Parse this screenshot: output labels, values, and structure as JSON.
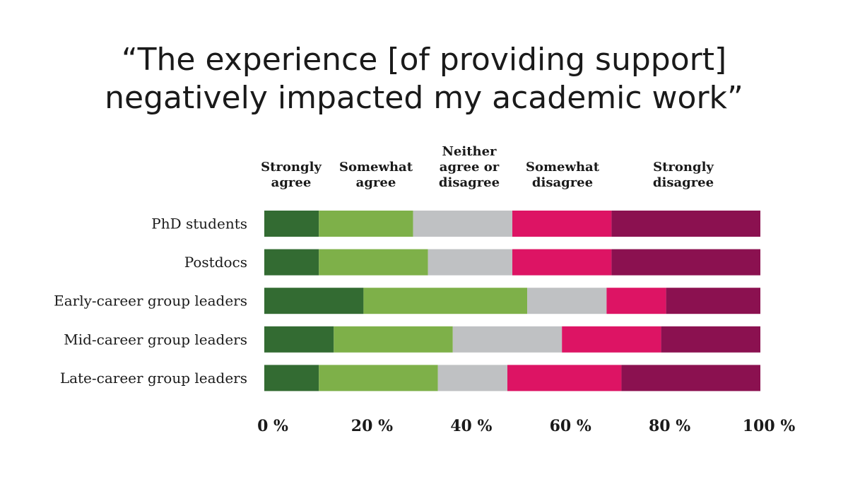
{
  "chart_data": {
    "type": "bar",
    "orientation": "horizontal",
    "stacked": true,
    "normalized": true,
    "title": [
      "“The experience [of providing support]",
      "negatively impacted my academic work”"
    ],
    "categories": [
      "PhD students",
      "Postdocs",
      "Early-career group leaders",
      "Mid-career group leaders",
      "Late-career group leaders"
    ],
    "series": [
      {
        "name": [
          "Strongly",
          "agree"
        ],
        "color": "#336b32",
        "values": [
          11,
          11,
          20,
          14,
          11
        ]
      },
      {
        "name": [
          "Somewhat",
          "agree"
        ],
        "color": "#7eb049",
        "values": [
          19,
          22,
          33,
          24,
          24
        ]
      },
      {
        "name": [
          "Neither",
          "agree or",
          "disagree"
        ],
        "color": "#bfc1c3",
        "values": [
          20,
          17,
          16,
          22,
          14
        ]
      },
      {
        "name": [
          "Somewhat",
          "disagree"
        ],
        "color": "#dd1464",
        "values": [
          20,
          20,
          12,
          20,
          23
        ]
      },
      {
        "name": [
          "Strongly",
          "disagree"
        ],
        "color": "#8b1150",
        "values": [
          30,
          30,
          19,
          20,
          28
        ]
      }
    ],
    "xlim": [
      0,
      100
    ],
    "xticks": [
      "0 %",
      "20 %",
      "40 %",
      "60 %",
      "80 %",
      "100 %"
    ],
    "legend_position": "top",
    "grid": false
  }
}
